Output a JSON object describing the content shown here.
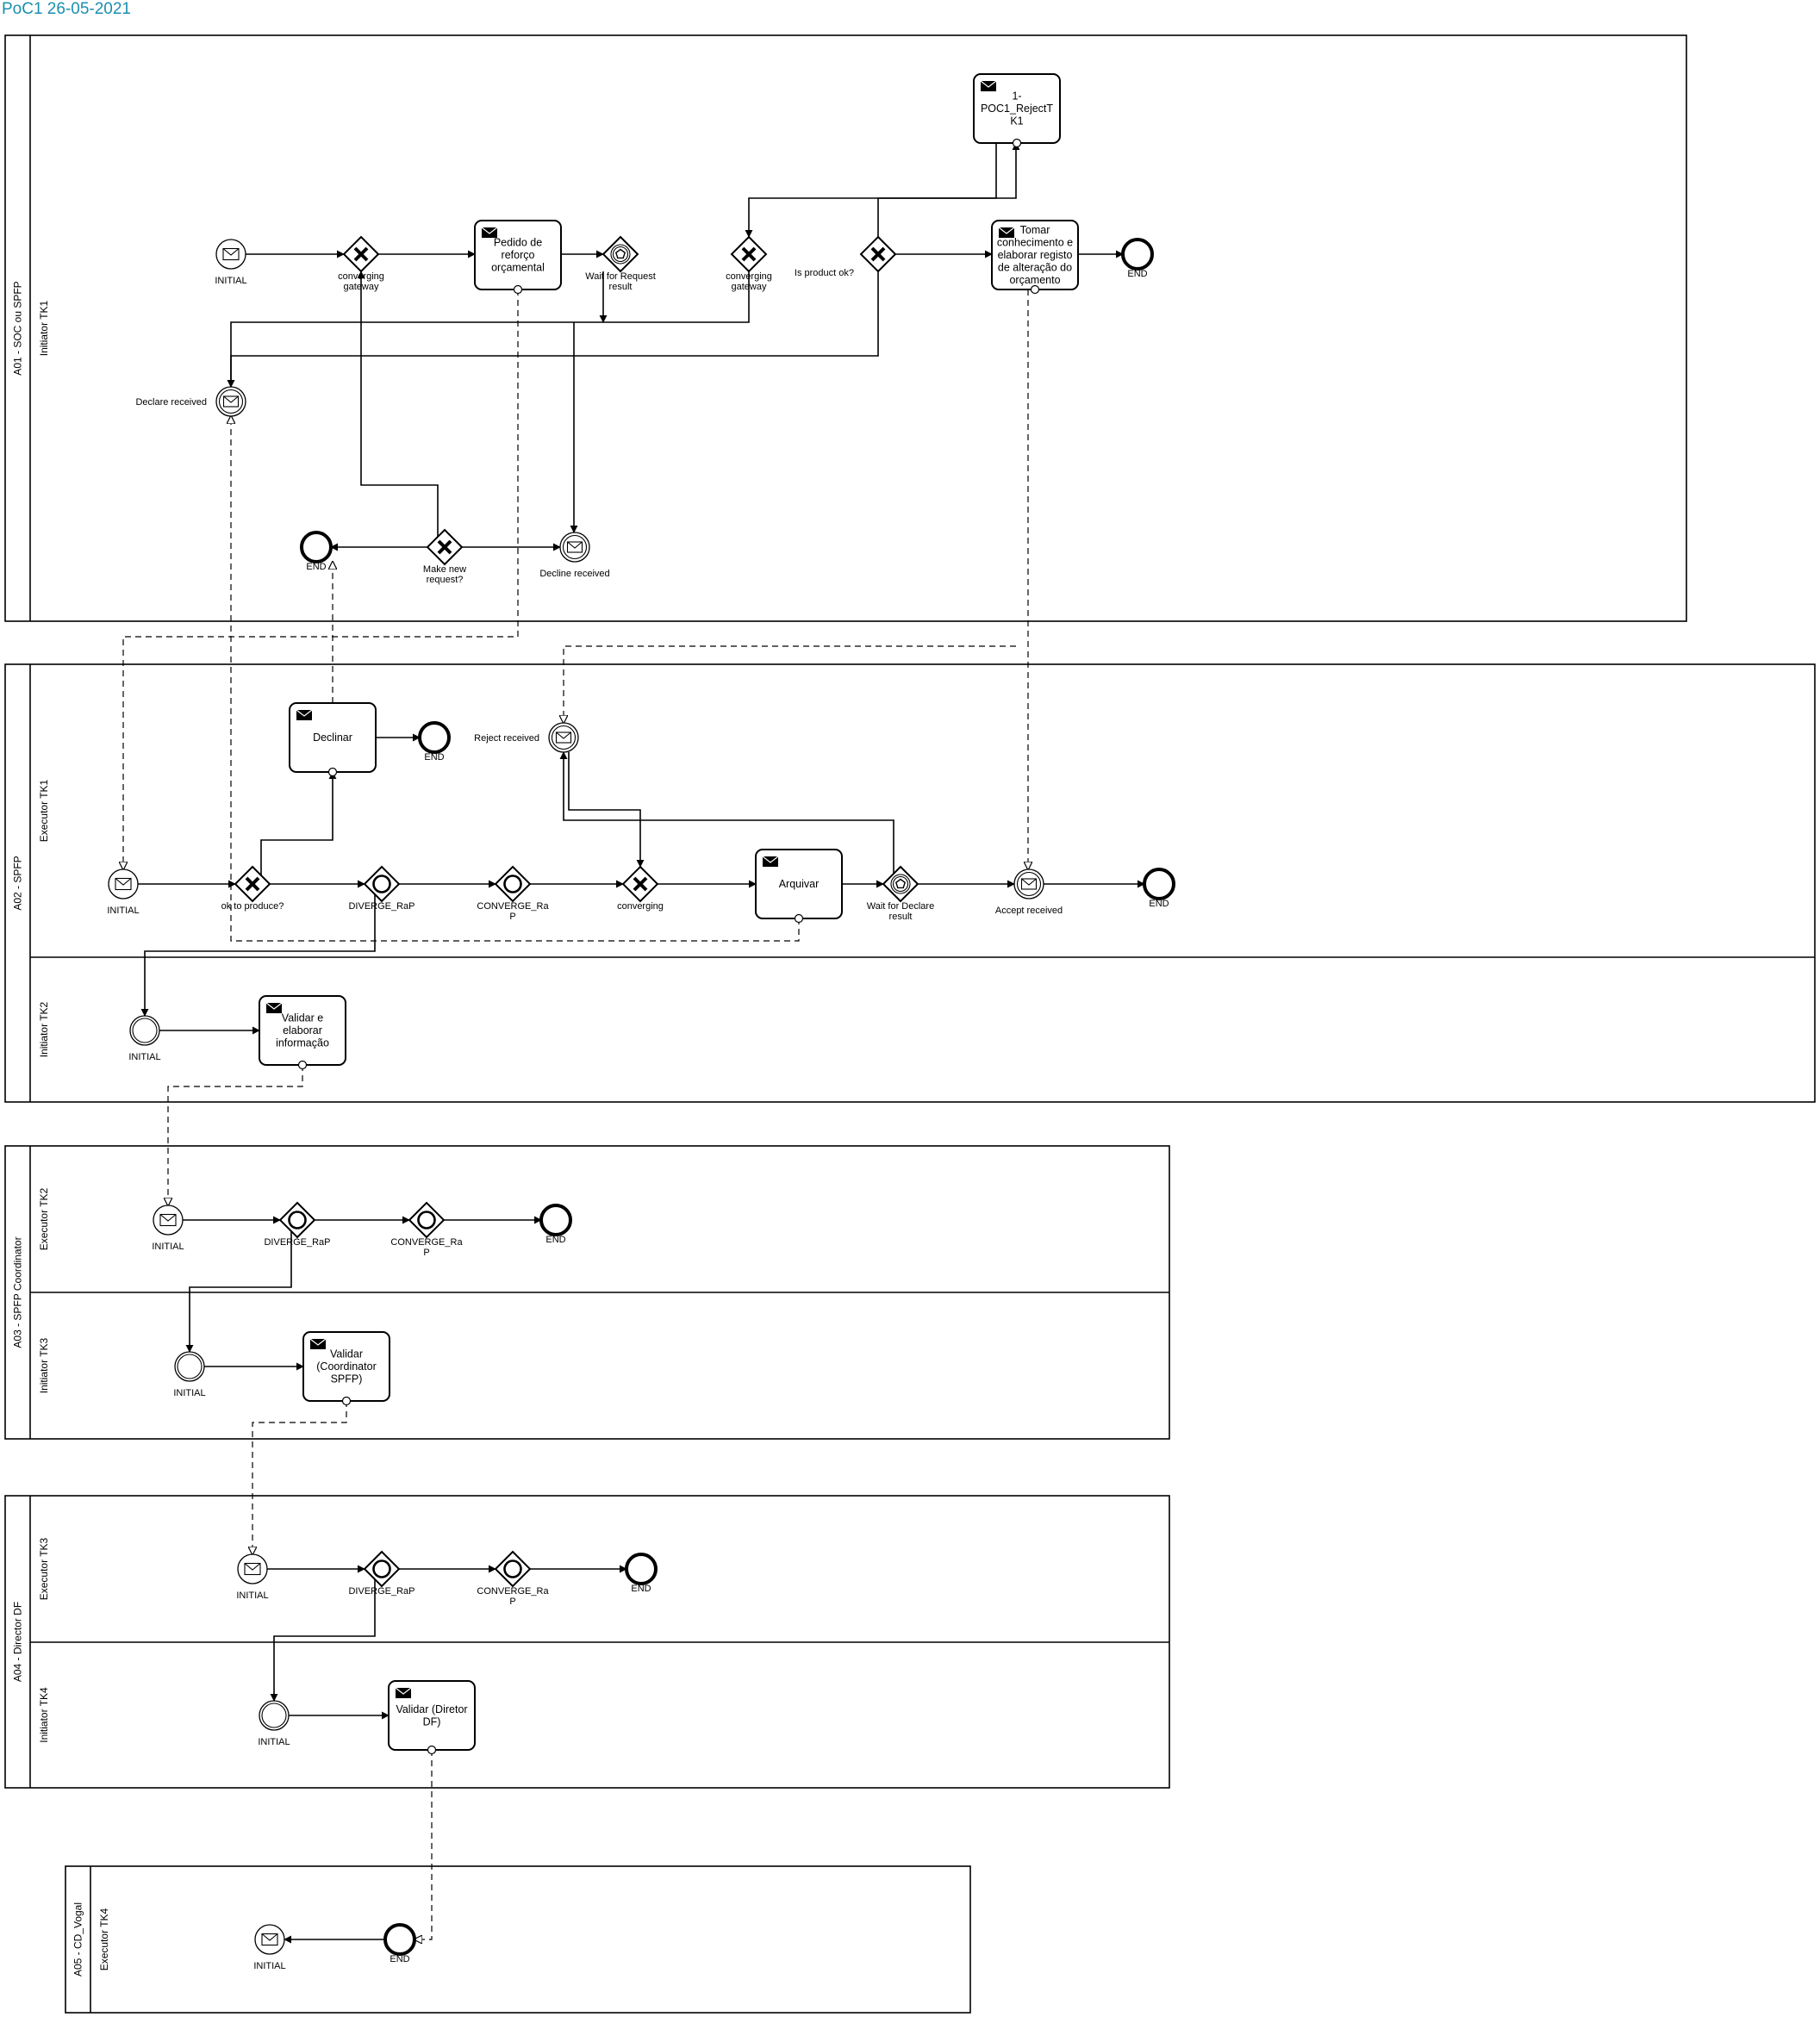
{
  "title": "PoC1 26-05-2021",
  "pools": [
    {
      "id": "P1",
      "label": "A01 - SOC ou SPFP",
      "lanes": [
        {
          "id": "L1",
          "label": "Initiator TK1"
        }
      ]
    },
    {
      "id": "P2",
      "label": "A02 - SPFP",
      "lanes": [
        {
          "id": "L2",
          "label": "Executor TK1"
        },
        {
          "id": "L3",
          "label": "Initiator TK2"
        }
      ]
    },
    {
      "id": "P3",
      "label": "A03 - SPFP Coordinator",
      "lanes": [
        {
          "id": "L4",
          "label": "Executor TK2"
        },
        {
          "id": "L5",
          "label": "Initiator TK3"
        }
      ]
    },
    {
      "id": "P4",
      "label": "A04 - Director DF",
      "lanes": [
        {
          "id": "L6",
          "label": "Executor TK3"
        },
        {
          "id": "L7",
          "label": "Initiator TK4"
        }
      ]
    },
    {
      "id": "P5",
      "label": "A05 - CD_Vogal",
      "lanes": [
        {
          "id": "L8",
          "label": "Executor TK4"
        }
      ]
    }
  ],
  "nodes": [
    {
      "id": "s1",
      "kind": "start-message",
      "label": [
        "INITIAL"
      ]
    },
    {
      "id": "g1",
      "kind": "gateway-x",
      "label": [
        "converging",
        "gateway"
      ]
    },
    {
      "id": "t1",
      "kind": "task",
      "label": [
        "Pedido de",
        "reforço",
        "orçamental"
      ]
    },
    {
      "id": "g2",
      "kind": "gateway-event",
      "label": [
        "Wait for Request",
        "result"
      ]
    },
    {
      "id": "g3",
      "kind": "gateway-x",
      "label": [
        "converging",
        "gateway"
      ]
    },
    {
      "id": "g4",
      "kind": "gateway-x",
      "label": [
        "Is product ok?"
      ]
    },
    {
      "id": "t2",
      "kind": "task",
      "label": [
        "Tomar",
        "conhecimento e",
        "elaborar registo",
        "de alteração do",
        "orçamento"
      ]
    },
    {
      "id": "e1",
      "kind": "end",
      "label": [
        "END"
      ]
    },
    {
      "id": "t3",
      "kind": "task",
      "label": [
        "1-",
        "POC1_RejectT",
        "K1"
      ]
    },
    {
      "id": "c1",
      "kind": "catch-message",
      "label": [
        "Declare received"
      ]
    },
    {
      "id": "e2",
      "kind": "end",
      "label": [
        "END"
      ]
    },
    {
      "id": "g5",
      "kind": "gateway-x",
      "label": [
        "Make new",
        "request?"
      ]
    },
    {
      "id": "c2",
      "kind": "catch-message",
      "label": [
        "Decline received"
      ]
    },
    {
      "id": "t4",
      "kind": "task",
      "label": [
        "Declinar"
      ]
    },
    {
      "id": "e3",
      "kind": "end",
      "label": [
        "END"
      ]
    },
    {
      "id": "c3",
      "kind": "catch-message",
      "label": [
        "Reject received"
      ]
    },
    {
      "id": "s2",
      "kind": "start-message",
      "label": [
        "INITIAL"
      ]
    },
    {
      "id": "g6",
      "kind": "gateway-x",
      "label": [
        "ok to produce?"
      ]
    },
    {
      "id": "g7",
      "kind": "gateway-o",
      "label": [
        "DIVERGE_RaP"
      ]
    },
    {
      "id": "g8",
      "kind": "gateway-o",
      "label": [
        "CONVERGE_Ra",
        "P"
      ]
    },
    {
      "id": "g9",
      "kind": "gateway-x",
      "label": [
        "converging"
      ]
    },
    {
      "id": "t5",
      "kind": "task",
      "label": [
        "Arquivar"
      ]
    },
    {
      "id": "g10",
      "kind": "gateway-event",
      "label": [
        "Wait for Declare",
        "result"
      ]
    },
    {
      "id": "c4",
      "kind": "catch-message",
      "label": [
        "Accept received"
      ]
    },
    {
      "id": "e4",
      "kind": "end",
      "label": [
        "END"
      ]
    },
    {
      "id": "s3",
      "kind": "start-plain",
      "label": [
        "INITIAL"
      ]
    },
    {
      "id": "t6",
      "kind": "task",
      "label": [
        "Validar e",
        "elaborar",
        "informação"
      ]
    },
    {
      "id": "s4",
      "kind": "start-message",
      "label": [
        "INITIAL"
      ]
    },
    {
      "id": "g11",
      "kind": "gateway-o",
      "label": [
        "DIVERGE_RaP"
      ]
    },
    {
      "id": "g12",
      "kind": "gateway-o",
      "label": [
        "CONVERGE_Ra",
        "P"
      ]
    },
    {
      "id": "e5",
      "kind": "end",
      "label": [
        "END"
      ]
    },
    {
      "id": "s5",
      "kind": "start-plain",
      "label": [
        "INITIAL"
      ]
    },
    {
      "id": "t7",
      "kind": "task",
      "label": [
        "Validar",
        "(Coordinator",
        "SPFP)"
      ]
    },
    {
      "id": "s6",
      "kind": "start-message",
      "label": [
        "INITIAL"
      ]
    },
    {
      "id": "g13",
      "kind": "gateway-o",
      "label": [
        "DIVERGE_RaP"
      ]
    },
    {
      "id": "g14",
      "kind": "gateway-o",
      "label": [
        "CONVERGE_Ra",
        "P"
      ]
    },
    {
      "id": "e6",
      "kind": "end",
      "label": [
        "END"
      ]
    },
    {
      "id": "s7",
      "kind": "start-plain",
      "label": [
        "INITIAL"
      ]
    },
    {
      "id": "t8",
      "kind": "task",
      "label": [
        "Validar (Diretor",
        "DF)"
      ]
    },
    {
      "id": "s8",
      "kind": "start-message",
      "label": [
        "INITIAL"
      ]
    },
    {
      "id": "e7",
      "kind": "end",
      "label": [
        "END"
      ]
    }
  ],
  "colors": {
    "line": "#000000",
    "title": "#1a8fb0",
    "background": "#ffffff"
  }
}
